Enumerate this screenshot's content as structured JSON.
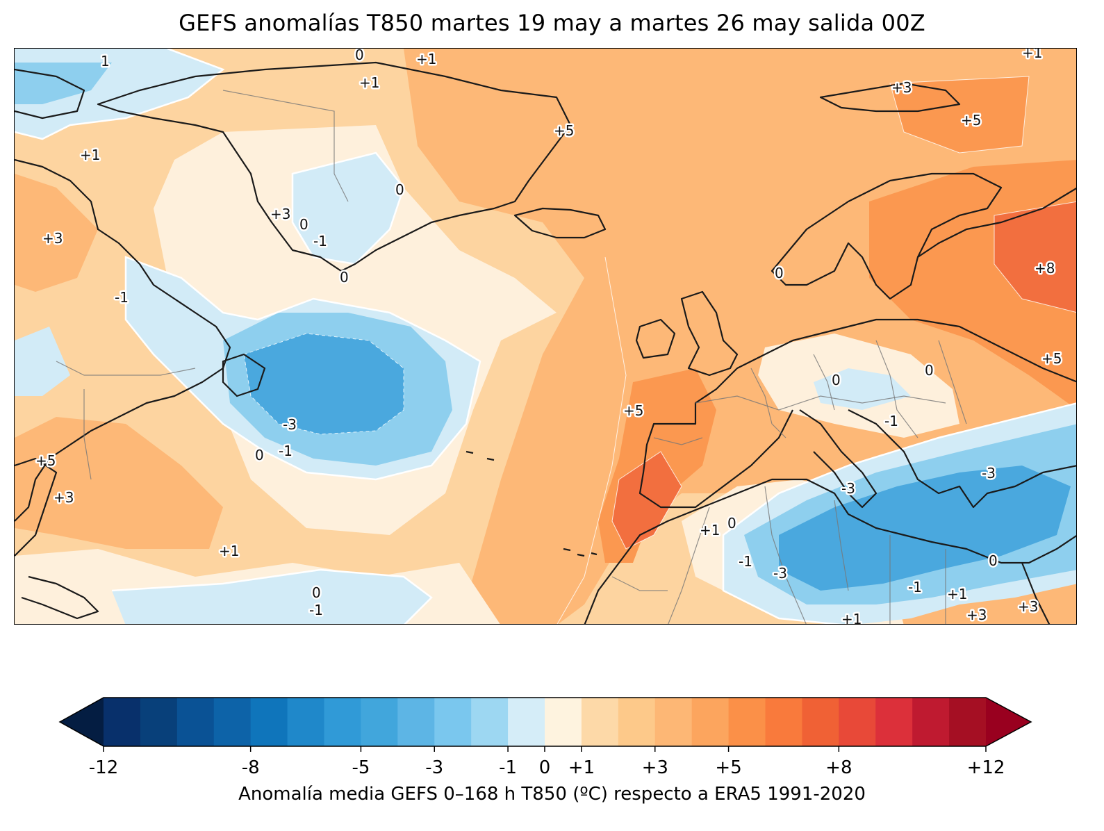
{
  "title": "GEFS anomalías T850 martes 19 may a martes 26 may salida 00Z",
  "colorbar": {
    "label": "Anomalía media GEFS 0–168 h T850 (ºC) respecto a ERA5 1991-2020",
    "range": [
      -12,
      12
    ],
    "extend": "both",
    "colors": [
      "#08306b",
      "#08407a",
      "#0a5295",
      "#0d63a8",
      "#0f75bb",
      "#1f88ca",
      "#309ad7",
      "#41a6dc",
      "#5db5e5",
      "#7ac7ee",
      "#9dd7f2",
      "#d5edf8",
      "#fef3df",
      "#fdd9a8",
      "#fdc98a",
      "#fdb775",
      "#fca55e",
      "#fb9048",
      "#f97a3c",
      "#f06135",
      "#e84938",
      "#dc303a",
      "#bf1a30",
      "#a50f23"
    ],
    "under_color": "#041d42",
    "over_color": "#99001f",
    "ticks": [
      "-12",
      "-8",
      "-5",
      "-3",
      "-1",
      "0",
      "+1",
      "+3",
      "+5",
      "+8",
      "+12"
    ]
  },
  "contour_labels": [
    "1",
    "0",
    "+1",
    "+1",
    "+1",
    "+5",
    "+3",
    "+5",
    "+1",
    "+3",
    "-3",
    "0",
    "-1",
    "0",
    "0",
    "+3",
    "-1",
    "0",
    "-1",
    "+5",
    "-3",
    "-1",
    "0",
    "+8",
    "+5",
    "0",
    "0",
    "-1",
    "+5",
    "-3",
    "-3",
    "+1",
    "0",
    "-1",
    "-3",
    "-1",
    "+1",
    "0",
    "+1",
    "+3",
    "+3",
    "+3",
    "0",
    "-1",
    "+1"
  ],
  "map": {
    "region": "Atlántico Norte, Europa y Norte de África",
    "colors": {
      "coast": "#1a1a1a",
      "border": "#777777",
      "contour": "#ffffff"
    }
  }
}
